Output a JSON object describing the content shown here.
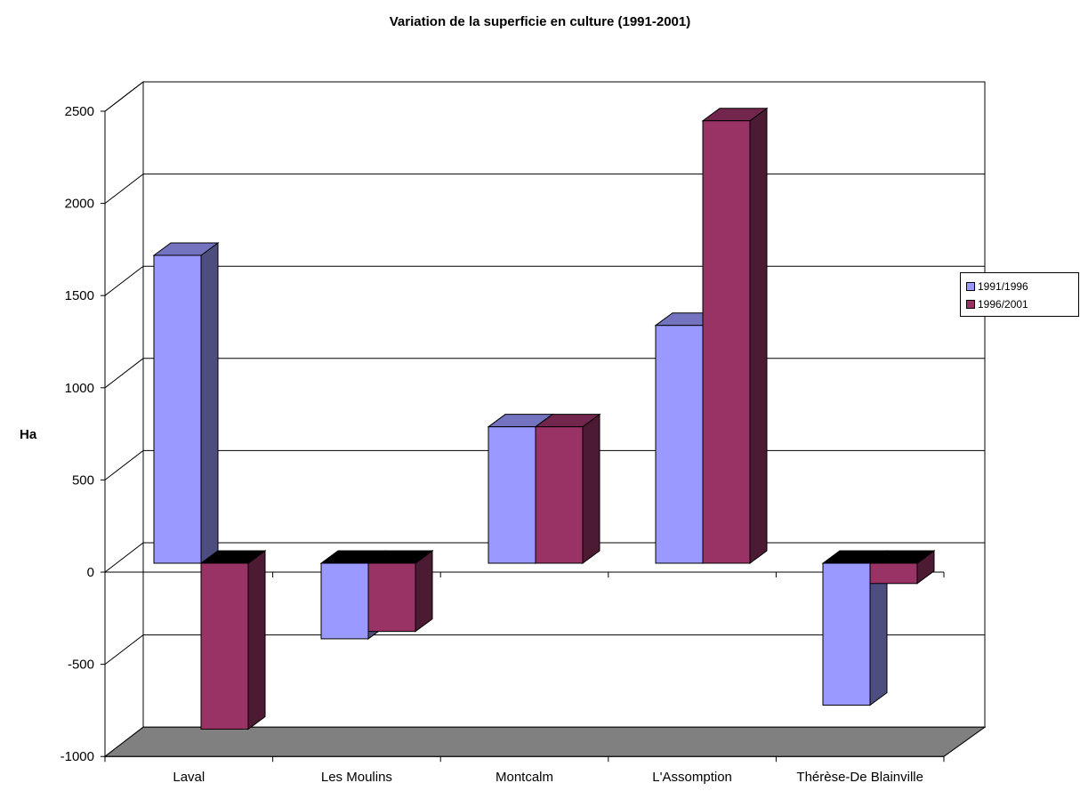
{
  "chart_data": {
    "type": "bar",
    "title": "Variation de la superficie en culture (1991-2001)",
    "ylabel": "Ha",
    "xlabel": "",
    "categories": [
      "Laval",
      "Les Moulins",
      "Montcalm",
      "L'Assomption",
      "Thérèse-De Blainville"
    ],
    "series": [
      {
        "name": "1991/1996",
        "values": [
          1670,
          -410,
          740,
          1290,
          -770
        ],
        "color": "#9999ff",
        "side_color": "#4d4d80",
        "top_color": "#7373bf"
      },
      {
        "name": "1996/2001",
        "values": [
          -900,
          -370,
          740,
          2400,
          -110
        ],
        "color": "#993366",
        "side_color": "#4d1a33",
        "top_color": "#73264d"
      }
    ],
    "ylim": [
      -1000,
      2500
    ],
    "yticks": [
      -1000,
      -500,
      0,
      500,
      1000,
      1500,
      2000,
      2500
    ],
    "grid": true,
    "legend_position": "right",
    "floor_color": "#808080"
  }
}
